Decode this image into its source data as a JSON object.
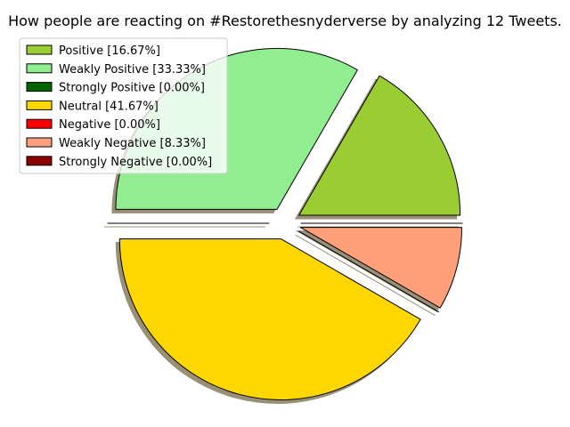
{
  "chart_data": {
    "type": "pie",
    "title": "How people are reacting on #Restorethesnyderverse by analyzing 12 Tweets.",
    "slices": [
      {
        "label": "Positive [16.67%]",
        "value": 16.67,
        "color": "#9acd32"
      },
      {
        "label": "Weakly Positive [33.33%]",
        "value": 33.33,
        "color": "#90ee90"
      },
      {
        "label": "Strongly Positive [0.00%]",
        "value": 0.0,
        "color": "#006400"
      },
      {
        "label": "Neutral [41.67%]",
        "value": 41.67,
        "color": "#ffd700"
      },
      {
        "label": "Negative [0.00%]",
        "value": 0.0,
        "color": "#ff0000"
      },
      {
        "label": "Weakly Negative [8.33%]",
        "value": 8.33,
        "color": "#ffa07a"
      },
      {
        "label": "Strongly Negative [0.00%]",
        "value": 0.0,
        "color": "#8b0000"
      }
    ],
    "start_angle_deg": 0,
    "exploded": true,
    "shadow": true,
    "legend_position": "upper-left"
  }
}
